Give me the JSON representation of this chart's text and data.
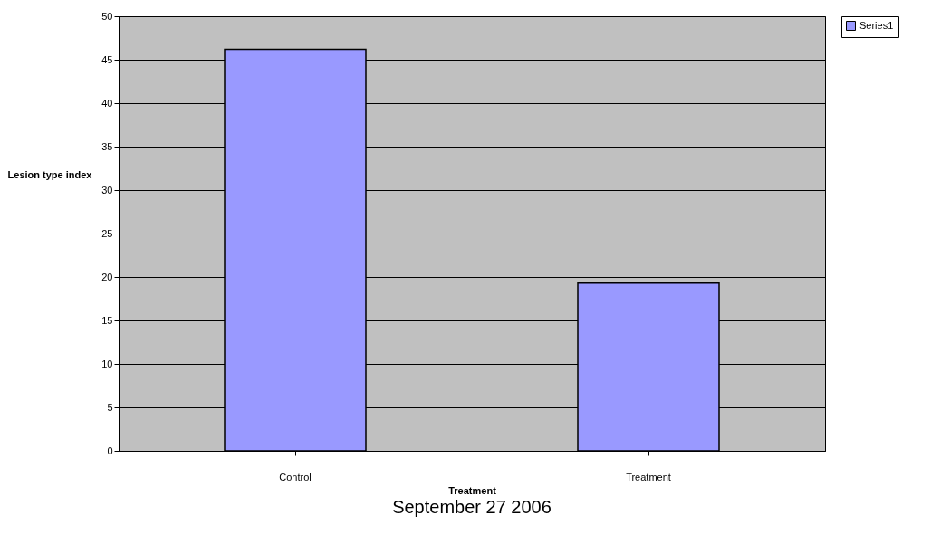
{
  "chart_data": {
    "type": "bar",
    "xlabel": "Treatment",
    "ylabel": "Lesion type index",
    "categories": [
      "Control",
      "Treatment"
    ],
    "series": [
      {
        "name": "Series1",
        "color": "#9999ff",
        "values": [
          46.2,
          19.3
        ]
      }
    ],
    "ylim": [
      0,
      50
    ],
    "yticks": [
      0,
      5,
      10,
      15,
      20,
      25,
      30,
      35,
      40,
      45,
      50
    ],
    "grid": "y",
    "legend": "right",
    "annotations": [
      "September 27 2006"
    ]
  }
}
